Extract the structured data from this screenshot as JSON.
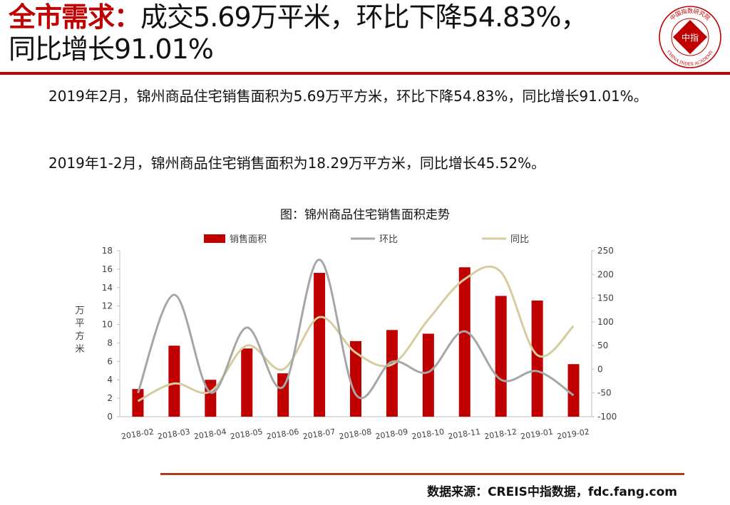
{
  "header": {
    "title_emphasis": "全市需求：",
    "title_line1_rest": "成交5.69万平米，环比下降54.83%，",
    "title_line2": "同比增长91.01%",
    "logo_text_top": "中国指数研究院",
    "logo_text_bottom": "CHINA INDEX ACADEMY",
    "logo_center": "中指"
  },
  "body": {
    "paragraph1": "2019年2月，锦州商品住宅销售面积为5.69万平方米，环比下降54.83%，同比增长91.01%。",
    "paragraph2": "2019年1-2月，锦州商品住宅销售面积为18.29万平方米，同比增长45.52%。"
  },
  "chart_title": "图：锦州商品住宅销售面积走势",
  "source_text": "数据来源：CREIS中指数据，fdc.fang.com",
  "colors": {
    "accent": "#c00000",
    "bar": "#c00000",
    "mom_line": "#a6a6a6",
    "yoy_line": "#d6cc9e"
  },
  "chart_data": {
    "type": "bar",
    "categories": [
      "2018-02",
      "2018-03",
      "2018-04",
      "2018-05",
      "2018-06",
      "2018-07",
      "2018-08",
      "2018-09",
      "2018-10",
      "2018-11",
      "2018-12",
      "2019-01",
      "2019-02"
    ],
    "series": [
      {
        "name": "销售面积",
        "type": "bar",
        "axis": "left",
        "values": [
          3.0,
          7.7,
          4.0,
          7.4,
          4.7,
          15.6,
          8.2,
          9.4,
          9.0,
          16.2,
          13.1,
          12.6,
          5.7
        ]
      },
      {
        "name": "环比",
        "type": "line",
        "axis": "right",
        "values": [
          -50,
          157,
          -49,
          88,
          -37,
          231,
          -53,
          16,
          -6,
          80,
          -22,
          -4,
          -55
        ]
      },
      {
        "name": "同比",
        "type": "line",
        "axis": "right",
        "values": [
          -67,
          -30,
          -47,
          50,
          0,
          110,
          35,
          10,
          105,
          190,
          205,
          30,
          91
        ]
      }
    ],
    "ylabel": "万平方米",
    "y2label": "%",
    "ylim": [
      0,
      18
    ],
    "y2lim": [
      -100,
      250
    ],
    "yticks": [
      "0",
      "2",
      "4",
      "6",
      "8",
      "10",
      "12",
      "14",
      "16",
      "18"
    ],
    "y2ticks": [
      "-100",
      "-50",
      "0",
      "50",
      "100",
      "150",
      "200",
      "250"
    ],
    "legend_position": "top",
    "grid": false
  }
}
